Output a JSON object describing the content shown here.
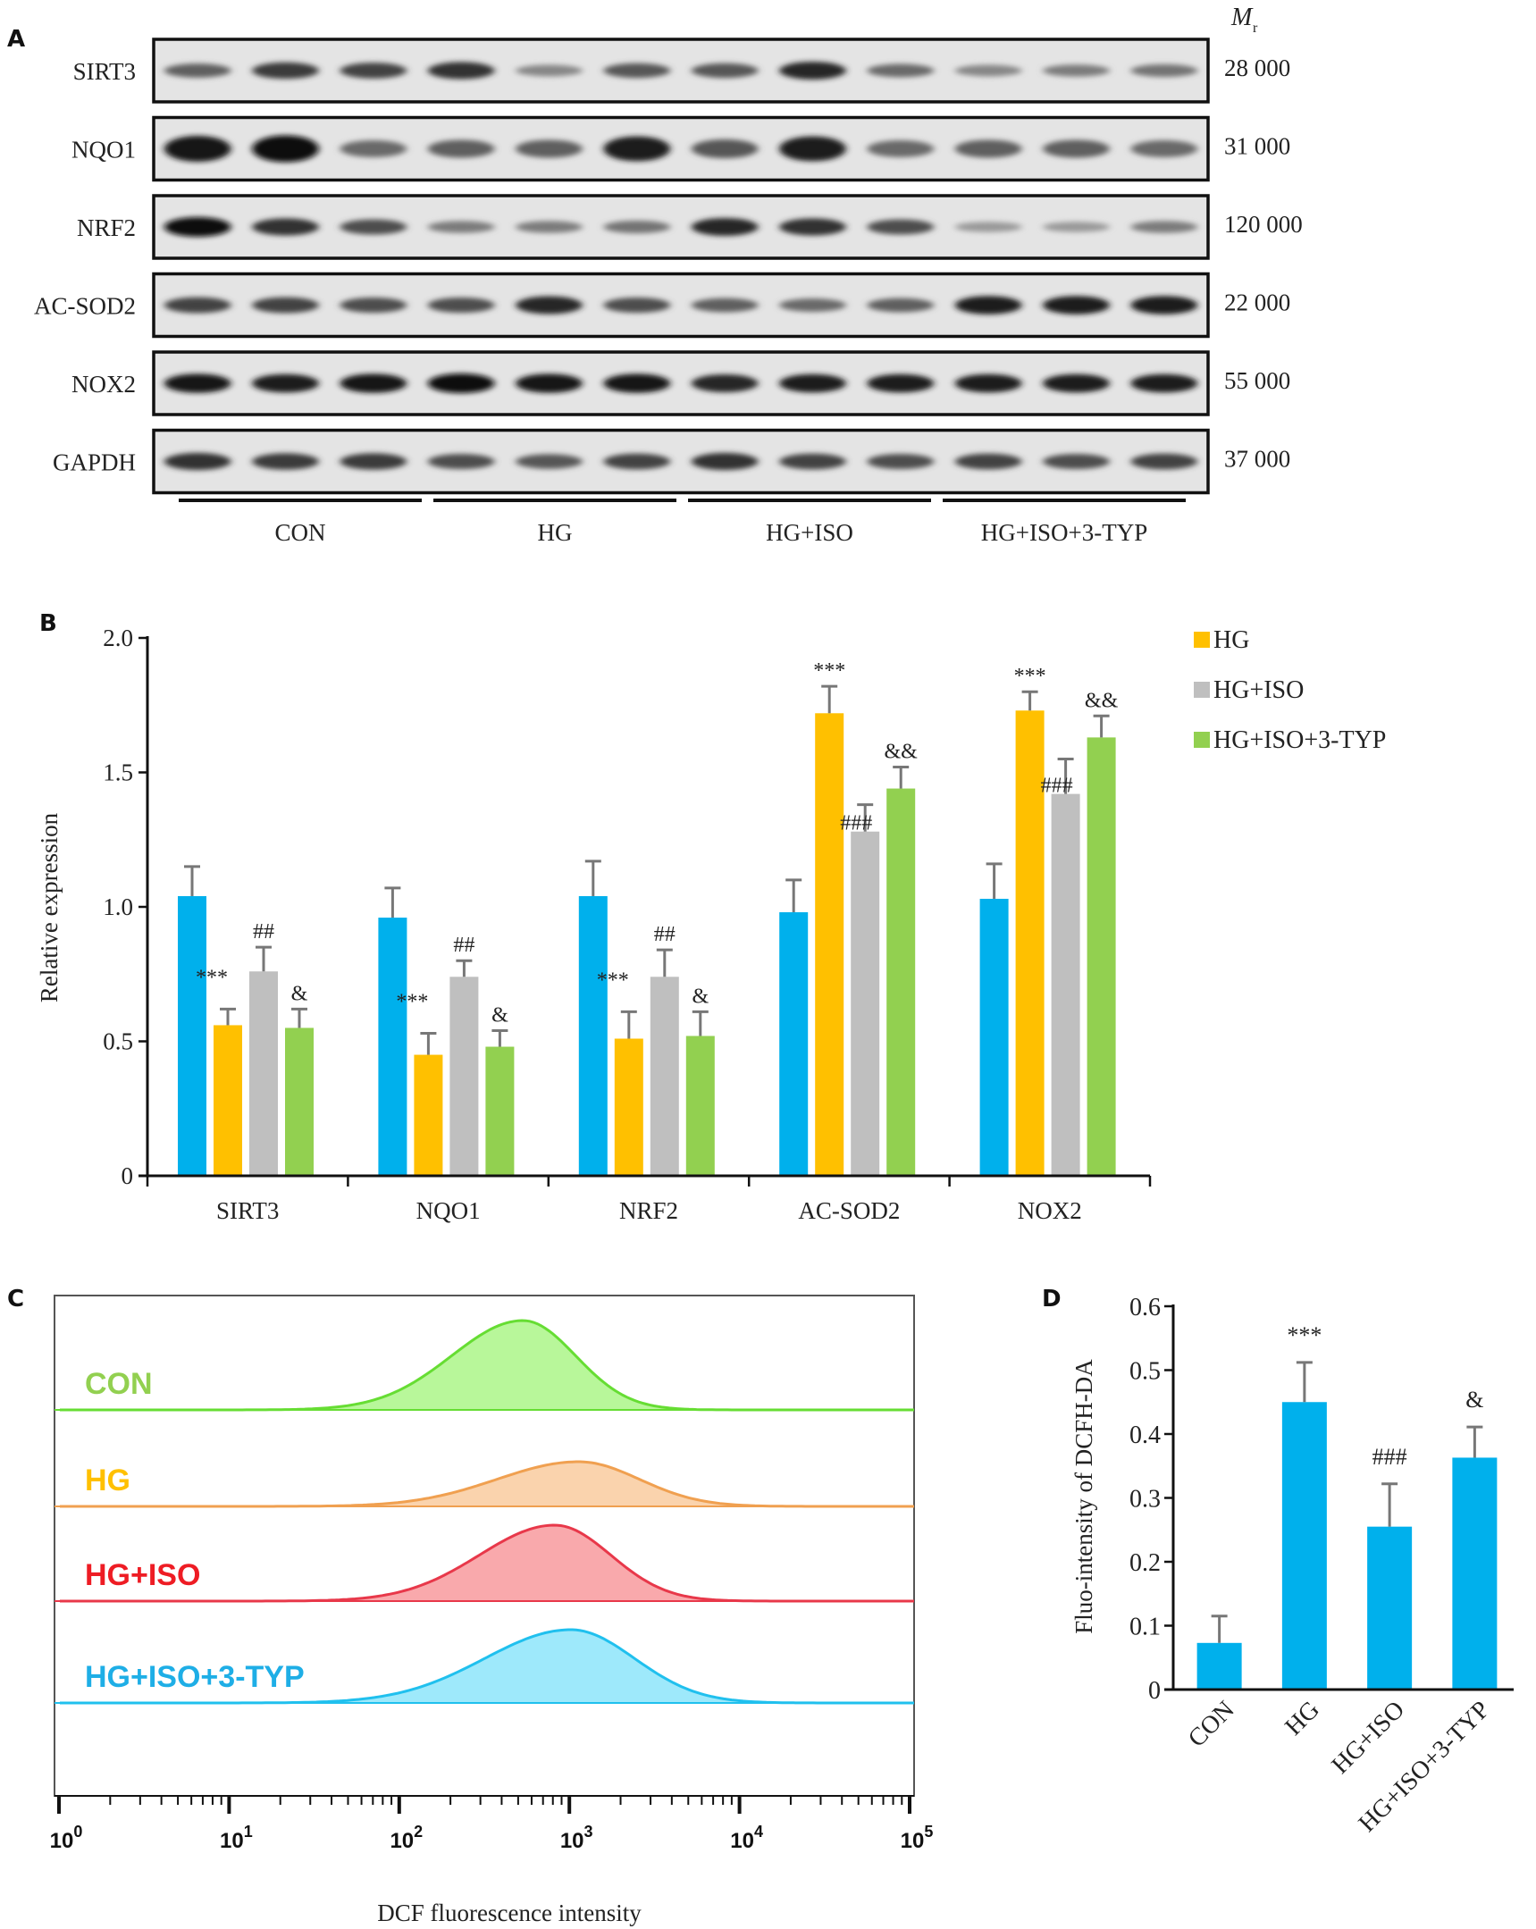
{
  "panels": {
    "a": "A",
    "b": "B",
    "c": "C",
    "d": "D"
  },
  "western_blot": {
    "mr_header": "M",
    "mr_sub": "r",
    "rows": [
      {
        "protein": "SIRT3",
        "mr": "28 000",
        "intensities": [
          0.55,
          0.75,
          0.7,
          0.8,
          0.35,
          0.6,
          0.6,
          0.85,
          0.5,
          0.35,
          0.4,
          0.45
        ]
      },
      {
        "protein": "NQO1",
        "mr": "31 000",
        "intensities": [
          0.95,
          1.0,
          0.5,
          0.55,
          0.55,
          0.9,
          0.6,
          0.9,
          0.5,
          0.55,
          0.55,
          0.5
        ]
      },
      {
        "protein": "NRF2",
        "mr": "120 000",
        "intensities": [
          1.0,
          0.8,
          0.65,
          0.4,
          0.4,
          0.45,
          0.85,
          0.8,
          0.65,
          0.25,
          0.25,
          0.4
        ]
      },
      {
        "protein": "AC-SOD2",
        "mr": "22 000",
        "intensities": [
          0.7,
          0.7,
          0.65,
          0.65,
          0.85,
          0.65,
          0.55,
          0.5,
          0.55,
          0.9,
          0.9,
          0.9
        ]
      },
      {
        "protein": "NOX2",
        "mr": "55 000",
        "intensities": [
          0.95,
          0.9,
          0.95,
          1.0,
          0.95,
          0.95,
          0.85,
          0.9,
          0.9,
          0.9,
          0.9,
          0.9
        ]
      },
      {
        "protein": "GAPDH",
        "mr": "37 000",
        "intensities": [
          0.8,
          0.75,
          0.75,
          0.65,
          0.6,
          0.7,
          0.8,
          0.7,
          0.65,
          0.7,
          0.65,
          0.7
        ]
      }
    ],
    "groups": [
      "CON",
      "HG",
      "HG+ISO",
      "HG+ISO+3-TYP"
    ]
  },
  "chart_data": [
    {
      "panel": "B",
      "type": "bar",
      "title": "",
      "xlabel": "",
      "ylabel": "Relative expression",
      "ylim": [
        0,
        2.0
      ],
      "yticks": [
        "0",
        "0.5",
        "1.0",
        "1.5",
        "2.0"
      ],
      "categories": [
        "SIRT3",
        "NQO1",
        "NRF2",
        "AC-SOD2",
        "NOX2"
      ],
      "legend": {
        "placement": "top-right",
        "entries": [
          "HG",
          "HG+ISO",
          "HG+ISO+3-TYP"
        ]
      },
      "series": [
        {
          "name": "CON",
          "color": "#00b0ec",
          "values": [
            1.04,
            0.96,
            1.04,
            0.98,
            1.03
          ],
          "errors": [
            0.11,
            0.11,
            0.13,
            0.12,
            0.13
          ],
          "marks": [
            "",
            "",
            "",
            "",
            ""
          ]
        },
        {
          "name": "HG",
          "color": "#ffc000",
          "values": [
            0.56,
            0.45,
            0.51,
            1.72,
            1.73
          ],
          "errors": [
            0.06,
            0.08,
            0.1,
            0.1,
            0.07
          ],
          "marks": [
            "***",
            "***",
            "***",
            "***",
            "***"
          ]
        },
        {
          "name": "HG+ISO",
          "color": "#bfbfbf",
          "values": [
            0.76,
            0.74,
            0.74,
            1.28,
            1.42
          ],
          "errors": [
            0.09,
            0.06,
            0.1,
            0.1,
            0.13
          ],
          "marks": [
            "##",
            "##",
            "##",
            "###",
            "###"
          ]
        },
        {
          "name": "HG+ISO+3-TYP",
          "color": "#92d050",
          "values": [
            0.55,
            0.48,
            0.52,
            1.44,
            1.63
          ],
          "errors": [
            0.07,
            0.06,
            0.09,
            0.08,
            0.08
          ],
          "marks": [
            "&",
            "&",
            "&",
            "&&",
            "&&"
          ]
        }
      ]
    },
    {
      "panel": "C",
      "type": "area",
      "title": "",
      "xlabel": "DCF fluorescence intensity",
      "ylabel": "",
      "xscale": "log",
      "xlim": [
        0.6,
        150000
      ],
      "xticks": [
        "10^0",
        "10^1",
        "10^2",
        "10^3",
        "10^4",
        "10^5"
      ],
      "series": [
        {
          "name": "CON",
          "color": "#66dd33",
          "fill": "#b8f79a",
          "label_color": "#92d050",
          "peak_log10": 2.7,
          "spread": 0.33,
          "rel_height": 1.0
        },
        {
          "name": "HG",
          "color": "#f0a050",
          "fill": "#fad3ad",
          "label_color": "#ffc000",
          "peak_log10": 3.05,
          "spread": 0.38,
          "rel_height": 0.5
        },
        {
          "name": "HG+ISO",
          "color": "#e8384a",
          "fill": "#f9a9ac",
          "label_color": "#ee1c24",
          "peak_log10": 2.9,
          "spread": 0.35,
          "rel_height": 0.85
        },
        {
          "name": "HG+ISO+3-TYP",
          "color": "#20c0ee",
          "fill": "#9ee9fb",
          "label_color": "#1eaee6",
          "peak_log10": 3.0,
          "spread": 0.4,
          "rel_height": 0.82
        }
      ]
    },
    {
      "panel": "D",
      "type": "bar",
      "title": "",
      "xlabel": "",
      "ylabel": "Fluo-intensity of DCFH-DA",
      "ylim": [
        0,
        0.6
      ],
      "yticks": [
        "0",
        "0.1",
        "0.2",
        "0.3",
        "0.4",
        "0.5",
        "0.6"
      ],
      "categories": [
        "CON",
        "HG",
        "HG+ISO",
        "HG+ISO+3-TYP"
      ],
      "series": [
        {
          "name": "Fluo-intensity",
          "color": "#00b0ec",
          "values": [
            0.073,
            0.45,
            0.255,
            0.363
          ],
          "errors": [
            0.042,
            0.062,
            0.067,
            0.048
          ],
          "marks": [
            "",
            "***",
            "###",
            "&"
          ]
        }
      ]
    }
  ]
}
